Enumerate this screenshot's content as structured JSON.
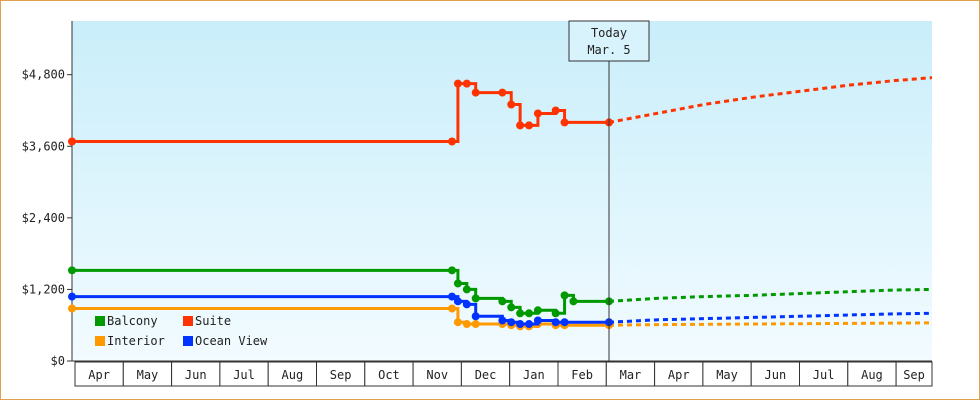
{
  "chart_data": {
    "type": "line",
    "y_ticks": [
      "$0",
      "$1,200",
      "$2,400",
      "$3,600",
      "$4,800"
    ],
    "ylim": [
      0,
      5700
    ],
    "months": [
      "Apr",
      "May",
      "Jun",
      "Jul",
      "Aug",
      "Sep",
      "Oct",
      "Nov",
      "Dec",
      "Jan",
      "Feb",
      "Mar",
      "Apr",
      "May",
      "Jun",
      "Jul",
      "Aug",
      "Sep"
    ],
    "callout": {
      "line1": "Today",
      "line2": "Mar. 5"
    },
    "today_index": 11.1,
    "legend_position": "bottom-left",
    "grid": false,
    "series": [
      {
        "name": "Suite",
        "color": "#ff3300",
        "history": [
          [
            0,
            3680
          ],
          [
            7.35,
            3680
          ],
          [
            7.45,
            4650
          ],
          [
            7.6,
            4650
          ],
          [
            7.75,
            4500
          ],
          [
            8.2,
            4500
          ],
          [
            8.35,
            4300
          ],
          [
            8.5,
            3950
          ],
          [
            8.65,
            3950
          ],
          [
            8.8,
            4150
          ],
          [
            9.1,
            4200
          ],
          [
            9.25,
            4000
          ],
          [
            10.0,
            4000
          ]
        ],
        "forecast": [
          [
            10.0,
            4000
          ],
          [
            11.0,
            4150
          ],
          [
            12.0,
            4300
          ],
          [
            13.0,
            4420
          ],
          [
            14.0,
            4520
          ],
          [
            15.0,
            4620
          ],
          [
            16.0,
            4700
          ],
          [
            16.8,
            4750
          ]
        ]
      },
      {
        "name": "Balcony",
        "color": "#009900",
        "history": [
          [
            0,
            1520
          ],
          [
            7.35,
            1520
          ],
          [
            7.45,
            1300
          ],
          [
            7.6,
            1200
          ],
          [
            7.75,
            1050
          ],
          [
            8.2,
            1000
          ],
          [
            8.35,
            900
          ],
          [
            8.5,
            800
          ],
          [
            8.65,
            800
          ],
          [
            8.8,
            850
          ],
          [
            9.1,
            800
          ],
          [
            9.25,
            1100
          ],
          [
            9.4,
            1000
          ],
          [
            10.0,
            1000
          ]
        ],
        "forecast": [
          [
            10.0,
            1000
          ],
          [
            11.0,
            1050
          ],
          [
            12.0,
            1080
          ],
          [
            13.0,
            1100
          ],
          [
            14.0,
            1130
          ],
          [
            15.0,
            1160
          ],
          [
            16.0,
            1190
          ],
          [
            16.8,
            1200
          ]
        ]
      },
      {
        "name": "Interior",
        "color": "#ff9900",
        "history": [
          [
            0,
            880
          ],
          [
            7.35,
            880
          ],
          [
            7.45,
            650
          ],
          [
            7.6,
            620
          ],
          [
            7.75,
            620
          ],
          [
            8.2,
            620
          ],
          [
            8.35,
            600
          ],
          [
            8.5,
            580
          ],
          [
            8.65,
            580
          ],
          [
            8.8,
            620
          ],
          [
            9.1,
            600
          ],
          [
            9.25,
            600
          ],
          [
            10.0,
            600
          ]
        ],
        "forecast": [
          [
            10.0,
            600
          ],
          [
            11.0,
            610
          ],
          [
            12.0,
            615
          ],
          [
            13.0,
            620
          ],
          [
            14.0,
            625
          ],
          [
            15.0,
            630
          ],
          [
            16.0,
            635
          ],
          [
            16.8,
            640
          ]
        ]
      },
      {
        "name": "Ocean View",
        "color": "#0033ff",
        "history": [
          [
            0,
            1080
          ],
          [
            7.35,
            1080
          ],
          [
            7.45,
            1000
          ],
          [
            7.6,
            950
          ],
          [
            7.75,
            750
          ],
          [
            8.2,
            680
          ],
          [
            8.35,
            650
          ],
          [
            8.5,
            620
          ],
          [
            8.65,
            620
          ],
          [
            8.8,
            680
          ],
          [
            9.1,
            650
          ],
          [
            9.25,
            650
          ],
          [
            10.0,
            650
          ]
        ],
        "forecast": [
          [
            10.0,
            650
          ],
          [
            11.0,
            690
          ],
          [
            12.0,
            710
          ],
          [
            13.0,
            730
          ],
          [
            14.0,
            750
          ],
          [
            15.0,
            770
          ],
          [
            16.0,
            790
          ],
          [
            16.8,
            800
          ]
        ]
      }
    ],
    "legend_order": [
      "Balcony",
      "Suite",
      "Interior",
      "Ocean View"
    ]
  }
}
